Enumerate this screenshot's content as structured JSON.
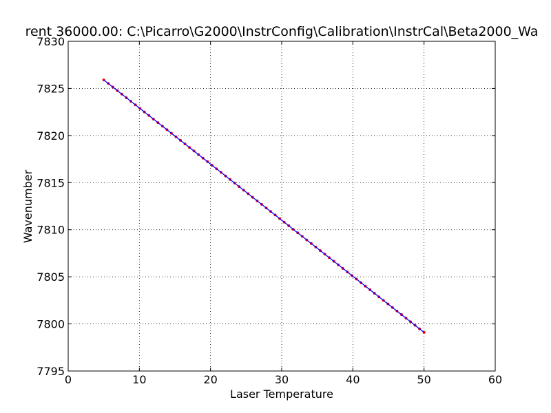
{
  "chart_data": {
    "type": "line",
    "title": "rent 36000.00: C:\\Picarro\\G2000\\InstrConfig\\Calibration\\InstrCal\\Beta2000_Wa",
    "xlabel": "Laser Temperature",
    "ylabel": "Wavenumber",
    "xlim": [
      0,
      60
    ],
    "ylim": [
      7795,
      7830
    ],
    "xticks": [
      "0",
      "10",
      "20",
      "30",
      "40",
      "50",
      "60"
    ],
    "yticks": [
      "7795",
      "7800",
      "7805",
      "7810",
      "7815",
      "7820",
      "7825",
      "7830"
    ],
    "grid": true,
    "series": [
      {
        "line_color": "#0000ff",
        "marker_color": "#ff0000",
        "x_start": 5,
        "x_end": 50,
        "y_start": 7825.9,
        "y_end": 7799.1,
        "points": 72
      }
    ]
  }
}
